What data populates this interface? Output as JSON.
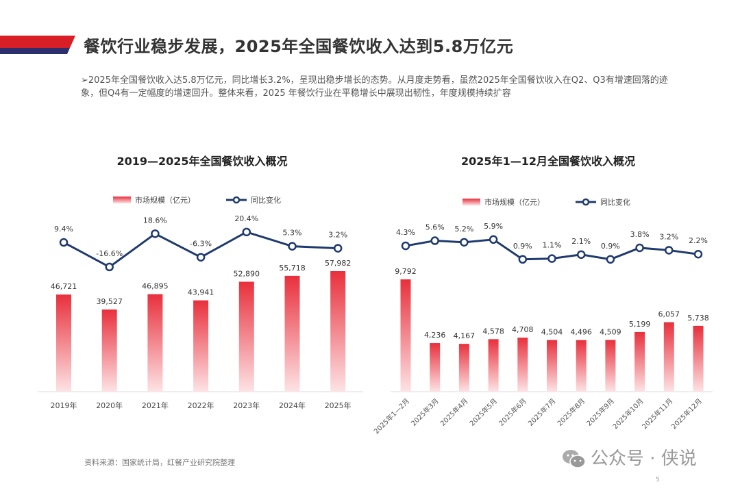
{
  "header": {
    "title": "餐饮行业稳步发展，2025年全国餐饮收入达到5.8万亿元",
    "summary": "➢2025年全国餐饮收入达5.8万亿元，同比增长3.2%，呈现出稳步增长的态势。从月度走势看，虽然2025年全国餐饮收入在Q2、Q3有增速回落的迹象，但Q4有一定幅度的增速回升。整体来看，2025 年餐饮行业在平稳增长中展现出韧性，年度规模持续扩容"
  },
  "footer": {
    "source": "资料来源：国家统计局，红餐产业研究院整理",
    "watermark": "公众号 · 侠说",
    "page_number": "5",
    "brand_watermark": "红餐产业研究院"
  },
  "colors": {
    "bar_top": "#e8303c",
    "bar_bottom": "#fde3e5",
    "line": "#1f3a6e",
    "banner_red": "#d91f26",
    "banner_navy": "#2b2f6e"
  },
  "chart_data": [
    {
      "type": "bar+line",
      "title": "2019—2025年全国餐饮收入概况",
      "legend": [
        "市场规模（亿元）",
        "同比变化"
      ],
      "legend_position": "top",
      "categories": [
        "2019年",
        "2020年",
        "2021年",
        "2022年",
        "2023年",
        "2024年",
        "2025年"
      ],
      "series": [
        {
          "name": "市场规模（亿元）",
          "type": "bar",
          "values": [
            46721,
            39527,
            46895,
            43941,
            52890,
            55718,
            57982
          ],
          "labels": [
            "46,721",
            "39,527",
            "46,895",
            "43,941",
            "52,890",
            "55,718",
            "57,982"
          ]
        },
        {
          "name": "同比变化",
          "type": "line",
          "values": [
            9.4,
            -16.6,
            18.6,
            -6.3,
            20.4,
            5.3,
            3.2
          ],
          "labels": [
            "9.4%",
            "-16.6%",
            "18.6%",
            "-6.3%",
            "20.4%",
            "5.3%",
            "3.2%"
          ]
        }
      ]
    },
    {
      "type": "bar+line",
      "title": "2025年1—12月全国餐饮收入概况",
      "legend": [
        "市场规模（亿元）",
        "同比变化"
      ],
      "legend_position": "top",
      "categories": [
        "2025年1—2月",
        "2025年3月",
        "2025年4月",
        "2025年5月",
        "2025年6月",
        "2025年7月",
        "2025年8月",
        "2025年9月",
        "2025年10月",
        "2025年11月",
        "2025年12月"
      ],
      "series": [
        {
          "name": "市场规模（亿元）",
          "type": "bar",
          "values": [
            9792,
            4236,
            4167,
            4578,
            4708,
            4504,
            4496,
            4509,
            5199,
            6057,
            5738
          ],
          "labels": [
            "9,792",
            "4,236",
            "4,167",
            "4,578",
            "4,708",
            "4,504",
            "4,496",
            "4,509",
            "5,199",
            "6,057",
            "5,738"
          ]
        },
        {
          "name": "同比变化",
          "type": "line",
          "values": [
            4.3,
            5.6,
            5.2,
            5.9,
            0.9,
            1.1,
            2.1,
            0.9,
            3.8,
            3.2,
            2.2
          ],
          "labels": [
            "4.3%",
            "5.6%",
            "5.2%",
            "5.9%",
            "0.9%",
            "1.1%",
            "2.1%",
            "0.9%",
            "3.8%",
            "3.2%",
            "2.2%"
          ]
        }
      ]
    }
  ]
}
